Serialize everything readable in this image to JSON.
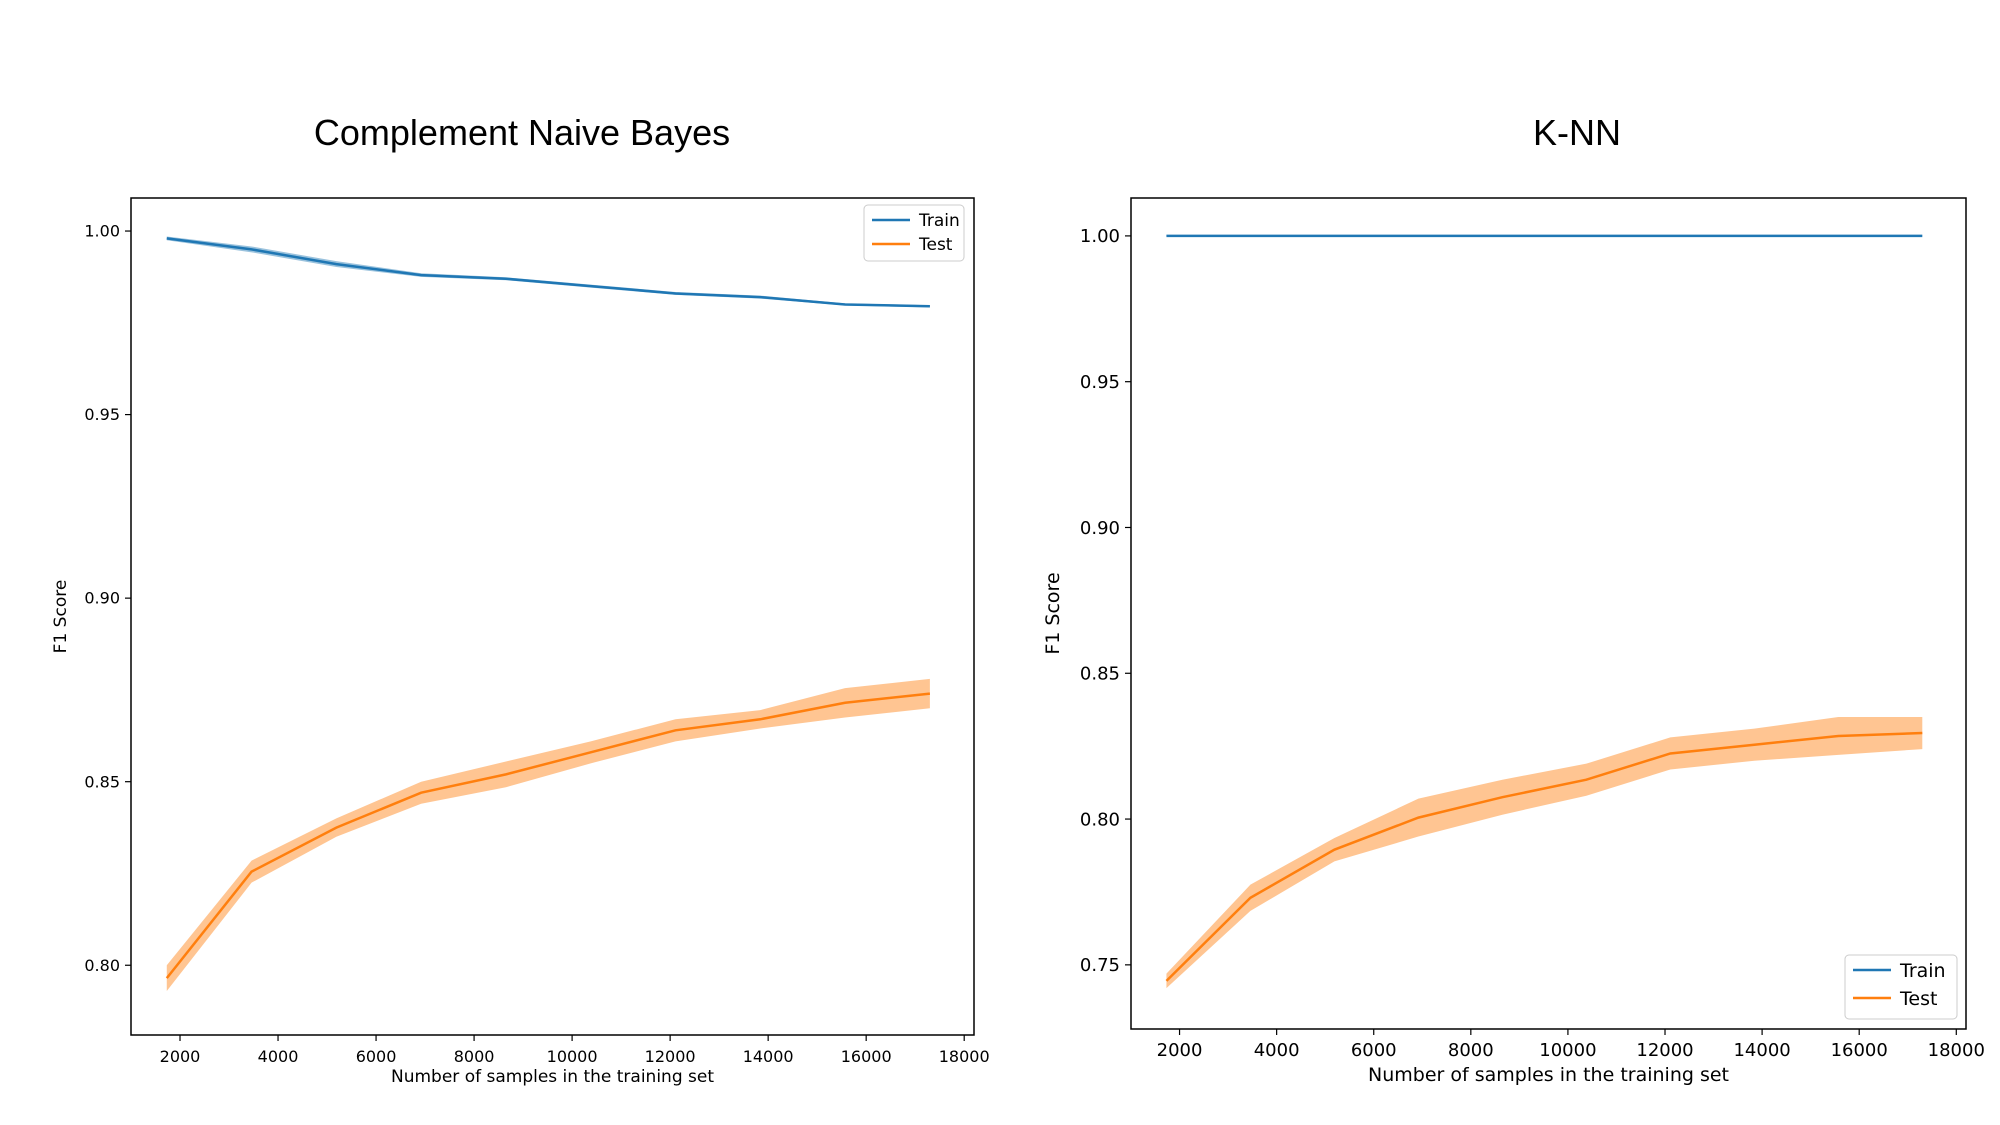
{
  "chart_data": [
    {
      "type": "line",
      "title": "Complement Naive Bayes",
      "xlabel": "Number of samples in the training set",
      "ylabel": "F1 Score",
      "xlim": [
        1000,
        18200
      ],
      "ylim": [
        0.781,
        1.009
      ],
      "xticks": [
        2000,
        4000,
        6000,
        8000,
        10000,
        12000,
        14000,
        16000,
        18000
      ],
      "yticks": [
        "0.80",
        "0.85",
        "0.90",
        "0.95",
        "1.00"
      ],
      "legend": "top-right",
      "series": [
        {
          "name": "Train",
          "color": "#1f77b4",
          "x": [
            1730,
            3460,
            5190,
            6920,
            8650,
            10380,
            12110,
            13840,
            15570,
            17300
          ],
          "y": [
            0.998,
            0.995,
            0.991,
            0.988,
            0.987,
            0.985,
            0.983,
            0.982,
            0.98,
            0.9795
          ],
          "band": [
            0.0005,
            0.0008,
            0.0008,
            0.0005,
            0.0004,
            0.0004,
            0.0004,
            0.0004,
            0.0003,
            0.0003
          ]
        },
        {
          "name": "Test",
          "color": "#ff7f0e",
          "x": [
            1730,
            3460,
            5190,
            6920,
            8650,
            10380,
            12110,
            13840,
            15570,
            17300
          ],
          "y": [
            0.7965,
            0.8255,
            0.8375,
            0.847,
            0.852,
            0.858,
            0.864,
            0.867,
            0.8715,
            0.874
          ],
          "band": [
            0.0035,
            0.003,
            0.0025,
            0.003,
            0.0035,
            0.003,
            0.003,
            0.0025,
            0.004,
            0.004
          ]
        }
      ]
    },
    {
      "type": "line",
      "title": "K-NN",
      "xlabel": "Number of samples in the training set",
      "ylabel": "F1 Score",
      "xlim": [
        1000,
        18200
      ],
      "ylim": [
        0.728,
        1.013
      ],
      "xticks": [
        2000,
        4000,
        6000,
        8000,
        10000,
        12000,
        14000,
        16000,
        18000
      ],
      "yticks": [
        "0.75",
        "0.80",
        "0.85",
        "0.90",
        "0.95",
        "1.00"
      ],
      "legend": "bottom-right",
      "series": [
        {
          "name": "Train",
          "color": "#1f77b4",
          "x": [
            1730,
            3460,
            5190,
            6920,
            8650,
            10380,
            12110,
            13840,
            15570,
            17300
          ],
          "y": [
            1.0,
            1.0,
            1.0,
            1.0,
            1.0,
            1.0,
            1.0,
            1.0,
            1.0,
            1.0
          ],
          "band": [
            0,
            0,
            0,
            0,
            0,
            0,
            0,
            0,
            0,
            0
          ]
        },
        {
          "name": "Test",
          "color": "#ff7f0e",
          "x": [
            1730,
            3460,
            5190,
            6920,
            8650,
            10380,
            12110,
            13840,
            15570,
            17300
          ],
          "y": [
            0.7445,
            0.773,
            0.7895,
            0.8005,
            0.8075,
            0.8135,
            0.8225,
            0.8255,
            0.8285,
            0.8295
          ],
          "band": [
            0.0025,
            0.0045,
            0.004,
            0.0065,
            0.006,
            0.0055,
            0.0055,
            0.0055,
            0.0065,
            0.0055
          ]
        }
      ]
    }
  ]
}
